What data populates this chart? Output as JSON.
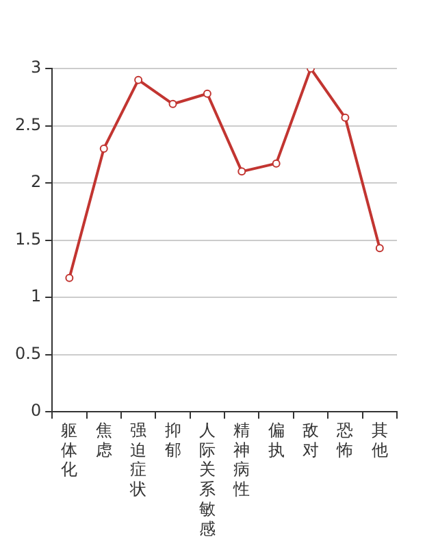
{
  "chart_data": {
    "type": "line",
    "categories": [
      "躯体化",
      "焦虑",
      "强迫症状",
      "抑郁",
      "人际关系敏感",
      "精神病性",
      "偏执",
      "敌对",
      "恐怖",
      "其他"
    ],
    "series": [
      {
        "color": "#c23531",
        "values": [
          1.17,
          2.3,
          2.9,
          2.69,
          2.78,
          2.1,
          2.17,
          3.0,
          2.57,
          1.43
        ]
      }
    ],
    "ylim": [
      0,
      3
    ],
    "yticks": [
      0,
      0.5,
      1,
      1.5,
      2,
      2.5,
      3
    ],
    "grid": "y",
    "legend": false,
    "marker": "circle",
    "line_style": "solid"
  }
}
